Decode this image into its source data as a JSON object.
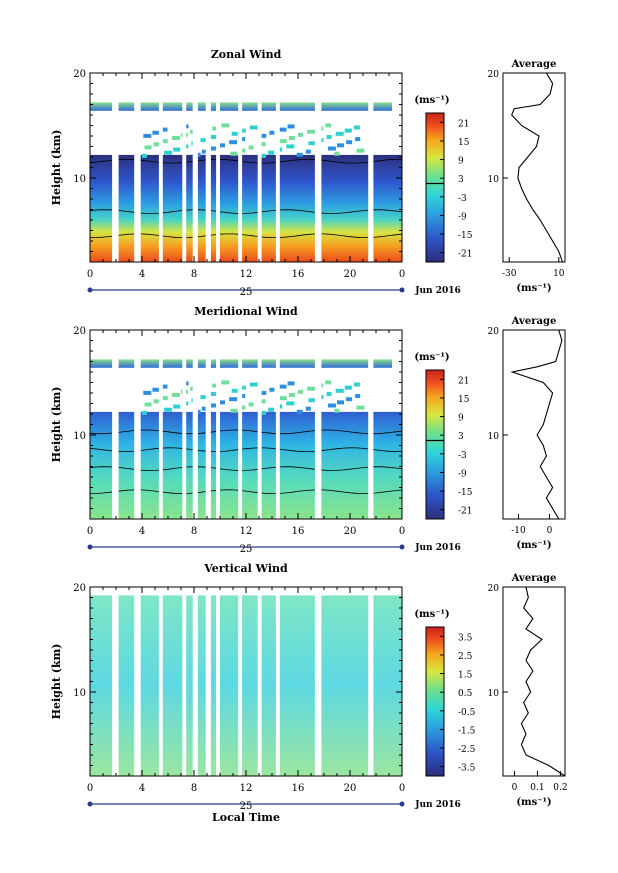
{
  "figure": {
    "xlabel": "Local Time",
    "ylabel": "Height (km)",
    "date_label": "Jun 2016",
    "day_label": "25",
    "cbar_unit": "(ms⁻¹)",
    "average_title": "Average",
    "average_unit": "(ms⁻¹)"
  },
  "chart_data": [
    {
      "type": "heatmap",
      "title": "Zonal Wind",
      "ylabel": "Height (km)",
      "x_ticks": [
        "0",
        "4",
        "8",
        "12",
        "16",
        "20",
        "0"
      ],
      "y_ticks": [
        "10",
        "20"
      ],
      "xlim": [
        0,
        24
      ],
      "ylim": [
        2,
        20
      ],
      "colorbar": {
        "ticks": [
          "21",
          "15",
          "9",
          "3",
          "-3",
          "-9",
          "-15",
          "-21"
        ],
        "range": [
          -24,
          24
        ]
      },
      "profile": {
        "title": "Average",
        "x_ticks": [
          "-30",
          "10"
        ],
        "xlim": [
          -35,
          15
        ],
        "y_ticks": [
          "10",
          "20"
        ],
        "points": [
          [
            13,
            2
          ],
          [
            10,
            3
          ],
          [
            5,
            4
          ],
          [
            0,
            5
          ],
          [
            -5,
            6
          ],
          [
            -11,
            7
          ],
          [
            -16,
            8
          ],
          [
            -20,
            9
          ],
          [
            -23,
            10
          ],
          [
            -22,
            11
          ],
          [
            -15,
            12
          ],
          [
            -8,
            13
          ],
          [
            -6,
            14
          ],
          [
            -20,
            15
          ],
          [
            -28,
            16
          ],
          [
            -26,
            16.6
          ],
          [
            -5,
            17
          ],
          [
            3,
            18
          ],
          [
            5,
            19
          ],
          [
            0,
            20
          ]
        ]
      }
    },
    {
      "type": "heatmap",
      "title": "Meridional Wind",
      "ylabel": "Height (km)",
      "x_ticks": [
        "0",
        "4",
        "8",
        "12",
        "16",
        "20",
        "0"
      ],
      "y_ticks": [
        "10",
        "20"
      ],
      "xlim": [
        0,
        24
      ],
      "ylim": [
        2,
        20
      ],
      "colorbar": {
        "ticks": [
          "21",
          "15",
          "9",
          "3",
          "-3",
          "-9",
          "-15",
          "-21"
        ],
        "range": [
          -24,
          24
        ]
      },
      "profile": {
        "title": "Average",
        "x_ticks": [
          "-10",
          "0"
        ],
        "xlim": [
          -15,
          5
        ],
        "y_ticks": [
          "10",
          "20"
        ],
        "points": [
          [
            3,
            2
          ],
          [
            1,
            3
          ],
          [
            -1,
            4
          ],
          [
            1,
            5
          ],
          [
            -1,
            6
          ],
          [
            -3,
            7
          ],
          [
            -1,
            8
          ],
          [
            -2,
            9
          ],
          [
            -4,
            10
          ],
          [
            -2,
            11
          ],
          [
            -1,
            12
          ],
          [
            0,
            13
          ],
          [
            1,
            14
          ],
          [
            -2,
            15
          ],
          [
            -12,
            16
          ],
          [
            -4,
            16.5
          ],
          [
            2,
            17
          ],
          [
            3,
            18
          ],
          [
            4,
            19
          ],
          [
            3,
            20
          ]
        ]
      }
    },
    {
      "type": "heatmap",
      "title": "Vertical Wind",
      "ylabel": "Height (km)",
      "x_ticks": [
        "0",
        "4",
        "8",
        "12",
        "16",
        "20",
        "0"
      ],
      "y_ticks": [
        "10",
        "20"
      ],
      "xlim": [
        0,
        24
      ],
      "ylim": [
        2,
        20
      ],
      "colorbar": {
        "ticks": [
          "3.5",
          "2.5",
          "1.5",
          "0.5",
          "-0.5",
          "-1.5",
          "-2.5",
          "-3.5"
        ],
        "range": [
          -4,
          4
        ]
      },
      "profile": {
        "title": "Average",
        "x_ticks": [
          "0",
          "0.1",
          "0.2"
        ],
        "xlim": [
          -0.05,
          0.22
        ],
        "y_ticks": [
          "10",
          "20"
        ],
        "points": [
          [
            0.22,
            2
          ],
          [
            0.15,
            3
          ],
          [
            0.05,
            4
          ],
          [
            0.03,
            5
          ],
          [
            0.05,
            6
          ],
          [
            0.03,
            7
          ],
          [
            0.06,
            8
          ],
          [
            0.04,
            9
          ],
          [
            0.07,
            10
          ],
          [
            0.05,
            11
          ],
          [
            0.08,
            12
          ],
          [
            0.05,
            13
          ],
          [
            0.07,
            14
          ],
          [
            0.12,
            15
          ],
          [
            0.05,
            16
          ],
          [
            0.08,
            17
          ],
          [
            0.04,
            18
          ],
          [
            0.06,
            19
          ],
          [
            0.05,
            20
          ]
        ]
      }
    }
  ]
}
